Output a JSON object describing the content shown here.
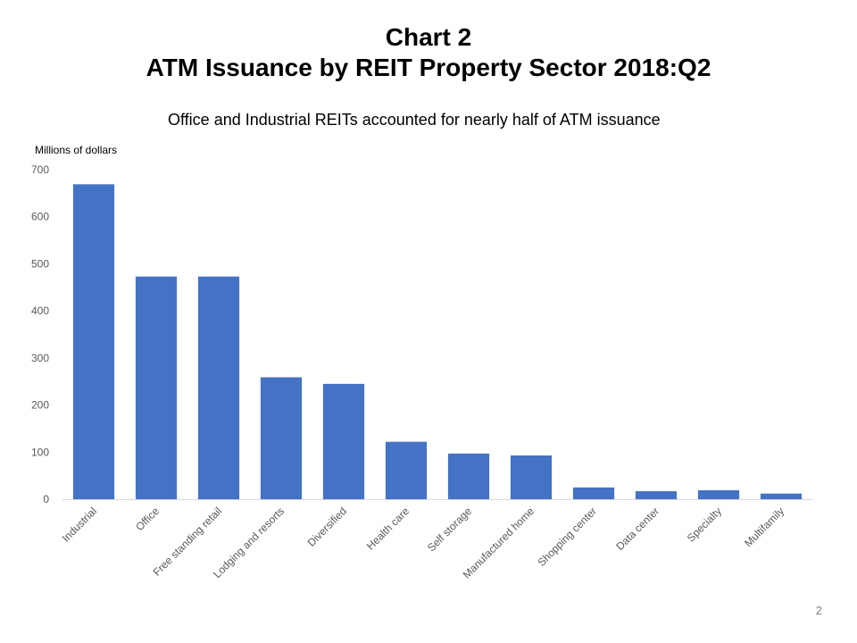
{
  "slide": {
    "title_line1": "Chart 2",
    "title_line2": "ATM Issuance by REIT Property Sector 2018:Q2",
    "subtitle": "Office and Industrial REITs accounted for nearly half of ATM issuance",
    "page_number": "2"
  },
  "colors": {
    "bar": "#4472C4",
    "axis_text": "#595959",
    "axis_line": "#d9d9d9"
  },
  "chart_data": {
    "type": "bar",
    "title": "ATM Issuance by REIT Property Sector 2018:Q2",
    "ylabel": "Millions of dollars",
    "xlabel": "",
    "ylim": [
      0,
      700
    ],
    "yticks": [
      0,
      100,
      200,
      300,
      400,
      500,
      600,
      700
    ],
    "grid": false,
    "categories": [
      "Industrial",
      "Office",
      "Free standing retail",
      "Lodging and resorts",
      "Diversified",
      "Health care",
      "Self storage",
      "Manufactured home",
      "Shopping center",
      "Data center",
      "Specialty",
      "Multifamily"
    ],
    "values": [
      669,
      473,
      473,
      259,
      245,
      122,
      97,
      93,
      25,
      17,
      19,
      12
    ]
  }
}
